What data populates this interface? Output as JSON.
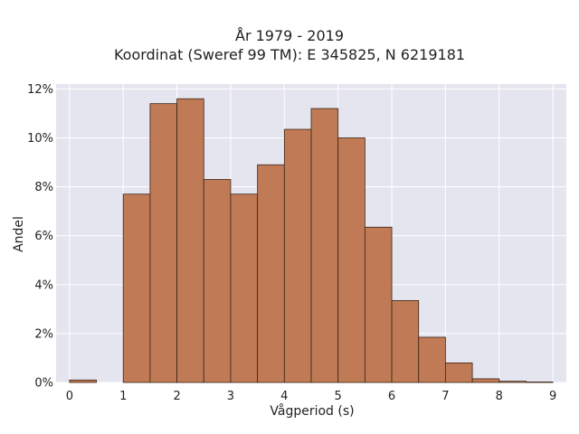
{
  "chart_data": {
    "type": "bar",
    "title": "År 1979 - 2019",
    "subtitle": "Koordinat (Sweref 99 TM): E 345825, N 6219181",
    "xlabel": "Vågperiod (s)",
    "ylabel": "Andel",
    "xlim": [
      -0.25,
      9.25
    ],
    "ylim": [
      0,
      12.2
    ],
    "xticks": [
      "0",
      "1",
      "2",
      "3",
      "4",
      "5",
      "6",
      "7",
      "8",
      "9"
    ],
    "yticks": [
      "0%",
      "2%",
      "4%",
      "6%",
      "8%",
      "10%",
      "12%"
    ],
    "grid": true,
    "bin_width": 0.5,
    "bins": [
      {
        "x0": 0.0,
        "x1": 0.5,
        "value": 0.1
      },
      {
        "x0": 0.5,
        "x1": 1.0,
        "value": 0.0
      },
      {
        "x0": 1.0,
        "x1": 1.5,
        "value": 7.7
      },
      {
        "x0": 1.5,
        "x1": 2.0,
        "value": 11.4
      },
      {
        "x0": 2.0,
        "x1": 2.5,
        "value": 11.6
      },
      {
        "x0": 2.5,
        "x1": 3.0,
        "value": 8.3
      },
      {
        "x0": 3.0,
        "x1": 3.5,
        "value": 7.7
      },
      {
        "x0": 3.5,
        "x1": 4.0,
        "value": 8.9
      },
      {
        "x0": 4.0,
        "x1": 4.5,
        "value": 10.35
      },
      {
        "x0": 4.5,
        "x1": 5.0,
        "value": 11.2
      },
      {
        "x0": 5.0,
        "x1": 5.5,
        "value": 10.0
      },
      {
        "x0": 5.5,
        "x1": 6.0,
        "value": 6.35
      },
      {
        "x0": 6.0,
        "x1": 6.5,
        "value": 3.35
      },
      {
        "x0": 6.5,
        "x1": 7.0,
        "value": 1.85
      },
      {
        "x0": 7.0,
        "x1": 7.5,
        "value": 0.8
      },
      {
        "x0": 7.5,
        "x1": 8.0,
        "value": 0.15
      },
      {
        "x0": 8.0,
        "x1": 8.5,
        "value": 0.05
      },
      {
        "x0": 8.5,
        "x1": 9.0,
        "value": 0.02
      }
    ],
    "colors": {
      "bar_fill": "#c07a55",
      "bar_edge": "#3a2518",
      "plot_bg": "#e5e5ef",
      "grid": "#ffffff"
    }
  }
}
